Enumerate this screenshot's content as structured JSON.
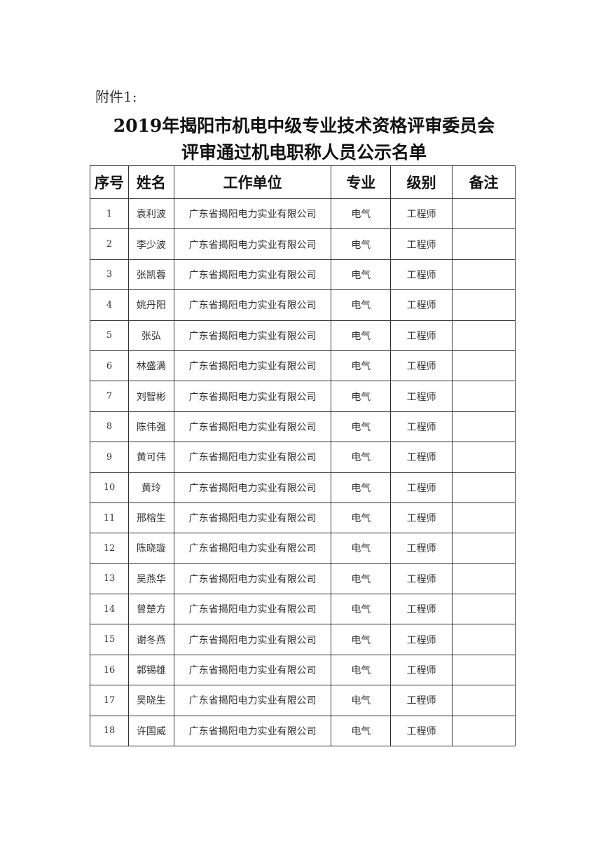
{
  "attachment_label": "附件1:",
  "title_line1": "2019年揭阳市机电中级专业技术资格评审委员会",
  "title_line2": "评审通过机电职称人员公示名单",
  "table": {
    "headers": [
      "序号",
      "姓名",
      "工作单位",
      "专业",
      "级别",
      "备注"
    ],
    "rows": [
      {
        "no": "1",
        "name": "袁利波",
        "unit": "广东省揭阳电力实业有限公司",
        "major": "电气",
        "level": "工程师",
        "note": ""
      },
      {
        "no": "2",
        "name": "李少波",
        "unit": "广东省揭阳电力实业有限公司",
        "major": "电气",
        "level": "工程师",
        "note": ""
      },
      {
        "no": "3",
        "name": "张凯蓉",
        "unit": "广东省揭阳电力实业有限公司",
        "major": "电气",
        "level": "工程师",
        "note": ""
      },
      {
        "no": "4",
        "name": "姚丹阳",
        "unit": "广东省揭阳电力实业有限公司",
        "major": "电气",
        "level": "工程师",
        "note": ""
      },
      {
        "no": "5",
        "name": "张弘",
        "unit": "广东省揭阳电力实业有限公司",
        "major": "电气",
        "level": "工程师",
        "note": ""
      },
      {
        "no": "6",
        "name": "林盛满",
        "unit": "广东省揭阳电力实业有限公司",
        "major": "电气",
        "level": "工程师",
        "note": ""
      },
      {
        "no": "7",
        "name": "刘智彬",
        "unit": "广东省揭阳电力实业有限公司",
        "major": "电气",
        "level": "工程师",
        "note": ""
      },
      {
        "no": "8",
        "name": "陈伟强",
        "unit": "广东省揭阳电力实业有限公司",
        "major": "电气",
        "level": "工程师",
        "note": ""
      },
      {
        "no": "9",
        "name": "黄可伟",
        "unit": "广东省揭阳电力实业有限公司",
        "major": "电气",
        "level": "工程师",
        "note": ""
      },
      {
        "no": "10",
        "name": "黄玲",
        "unit": "广东省揭阳电力实业有限公司",
        "major": "电气",
        "level": "工程师",
        "note": ""
      },
      {
        "no": "11",
        "name": "邢榕生",
        "unit": "广东省揭阳电力实业有限公司",
        "major": "电气",
        "level": "工程师",
        "note": ""
      },
      {
        "no": "12",
        "name": "陈晓璇",
        "unit": "广东省揭阳电力实业有限公司",
        "major": "电气",
        "level": "工程师",
        "note": ""
      },
      {
        "no": "13",
        "name": "吴燕华",
        "unit": "广东省揭阳电力实业有限公司",
        "major": "电气",
        "level": "工程师",
        "note": ""
      },
      {
        "no": "14",
        "name": "曾楚方",
        "unit": "广东省揭阳电力实业有限公司",
        "major": "电气",
        "level": "工程师",
        "note": ""
      },
      {
        "no": "15",
        "name": "谢冬燕",
        "unit": "广东省揭阳电力实业有限公司",
        "major": "电气",
        "level": "工程师",
        "note": ""
      },
      {
        "no": "16",
        "name": "郭锡雄",
        "unit": "广东省揭阳电力实业有限公司",
        "major": "电气",
        "level": "工程师",
        "note": ""
      },
      {
        "no": "17",
        "name": "吴晓生",
        "unit": "广东省揭阳电力实业有限公司",
        "major": "电气",
        "level": "工程师",
        "note": ""
      },
      {
        "no": "18",
        "name": "许国威",
        "unit": "广东省揭阳电力实业有限公司",
        "major": "电气",
        "level": "工程师",
        "note": ""
      }
    ]
  }
}
